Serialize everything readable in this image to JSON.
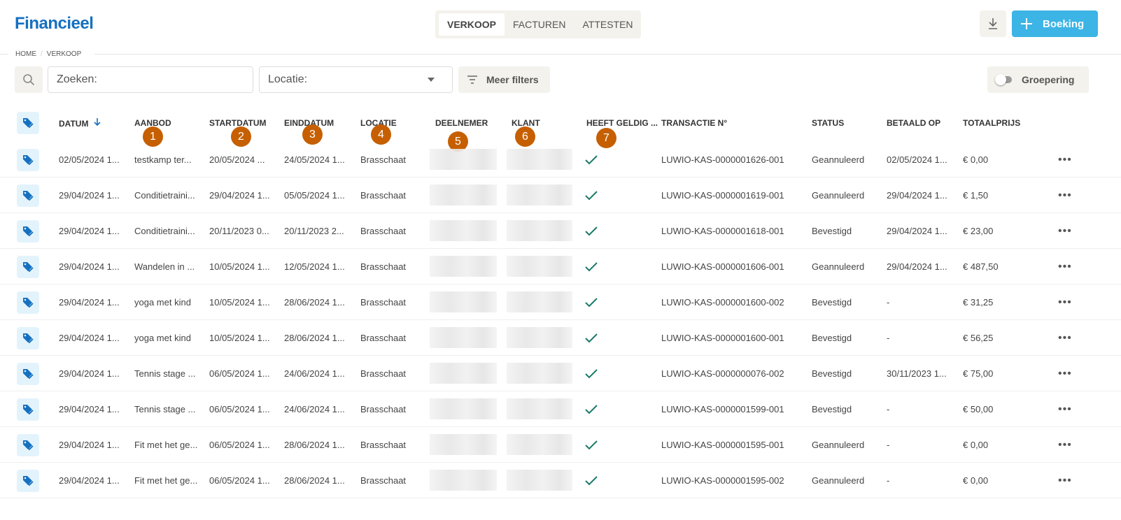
{
  "header": {
    "title": "Financieel",
    "tabs": [
      {
        "label": "VERKOOP",
        "active": true
      },
      {
        "label": "FACTUREN"
      },
      {
        "label": "ATTESTEN"
      }
    ],
    "download_icon": "download-icon",
    "booking_label": "Boeking"
  },
  "breadcrumb": [
    "HOME",
    "VERKOOP"
  ],
  "filters": {
    "search_placeholder": "Zoeken:",
    "location_placeholder": "Locatie:",
    "more_filters_label": "Meer filters",
    "grouping_label": "Groepering",
    "grouping_on": false
  },
  "table": {
    "columns": [
      "DATUM",
      "AANBOD",
      "STARTDATUM",
      "EINDDATUM",
      "LOCATIE",
      "DEELNEMER",
      "KLANT",
      "HEEFT GELDIG ...",
      "TRANSACTIE N°",
      "STATUS",
      "BETAALD OP",
      "TOTAALPRIJS"
    ],
    "sort": {
      "column": "DATUM",
      "direction": "desc"
    },
    "annotations": [
      "1",
      "2",
      "3",
      "4",
      "5",
      "6",
      "7"
    ],
    "rows": [
      {
        "datum": "02/05/2024 1...",
        "aanbod": "testkamp ter...",
        "start": "20/05/2024 ...",
        "eind": "24/05/2024 1...",
        "locatie": "Brasschaat",
        "geldig": true,
        "transactie": "LUWIO-KAS-0000001626-001",
        "status": "Geannuleerd",
        "betaald": "02/05/2024 1...",
        "totaal": "€ 0,00"
      },
      {
        "datum": "29/04/2024 1...",
        "aanbod": "Conditietraini...",
        "start": "29/04/2024 1...",
        "eind": "05/05/2024 1...",
        "locatie": "Brasschaat",
        "geldig": true,
        "transactie": "LUWIO-KAS-0000001619-001",
        "status": "Geannuleerd",
        "betaald": "29/04/2024 1...",
        "totaal": "€ 1,50"
      },
      {
        "datum": "29/04/2024 1...",
        "aanbod": "Conditietraini...",
        "start": "20/11/2023 0...",
        "eind": "20/11/2023 2...",
        "locatie": "Brasschaat",
        "geldig": true,
        "transactie": "LUWIO-KAS-0000001618-001",
        "status": "Bevestigd",
        "betaald": "29/04/2024 1...",
        "totaal": "€ 23,00"
      },
      {
        "datum": "29/04/2024 1...",
        "aanbod": "Wandelen in ...",
        "start": "10/05/2024 1...",
        "eind": "12/05/2024 1...",
        "locatie": "Brasschaat",
        "geldig": true,
        "transactie": "LUWIO-KAS-0000001606-001",
        "status": "Geannuleerd",
        "betaald": "29/04/2024 1...",
        "totaal": "€ 487,50"
      },
      {
        "datum": "29/04/2024 1...",
        "aanbod": "yoga met kind",
        "start": "10/05/2024 1...",
        "eind": "28/06/2024 1...",
        "locatie": "Brasschaat",
        "geldig": true,
        "transactie": "LUWIO-KAS-0000001600-002",
        "status": "Bevestigd",
        "betaald": "-",
        "totaal": "€ 31,25"
      },
      {
        "datum": "29/04/2024 1...",
        "aanbod": "yoga met kind",
        "start": "10/05/2024 1...",
        "eind": "28/06/2024 1...",
        "locatie": "Brasschaat",
        "geldig": true,
        "transactie": "LUWIO-KAS-0000001600-001",
        "status": "Bevestigd",
        "betaald": "-",
        "totaal": "€ 56,25"
      },
      {
        "datum": "29/04/2024 1...",
        "aanbod": "Tennis stage ...",
        "start": "06/05/2024 1...",
        "eind": "24/06/2024 1...",
        "locatie": "Brasschaat",
        "geldig": true,
        "transactie": "LUWIO-KAS-0000000076-002",
        "status": "Bevestigd",
        "betaald": "30/11/2023 1...",
        "totaal": "€ 75,00"
      },
      {
        "datum": "29/04/2024 1...",
        "aanbod": "Tennis stage ...",
        "start": "06/05/2024 1...",
        "eind": "24/06/2024 1...",
        "locatie": "Brasschaat",
        "geldig": true,
        "transactie": "LUWIO-KAS-0000001599-001",
        "status": "Bevestigd",
        "betaald": "-",
        "totaal": "€ 50,00"
      },
      {
        "datum": "29/04/2024 1...",
        "aanbod": "Fit met het ge...",
        "start": "06/05/2024 1...",
        "eind": "28/06/2024 1...",
        "locatie": "Brasschaat",
        "geldig": true,
        "transactie": "LUWIO-KAS-0000001595-001",
        "status": "Geannuleerd",
        "betaald": "-",
        "totaal": "€ 0,00"
      },
      {
        "datum": "29/04/2024 1...",
        "aanbod": "Fit met het ge...",
        "start": "06/05/2024 1...",
        "eind": "28/06/2024 1...",
        "locatie": "Brasschaat",
        "geldig": true,
        "transactie": "LUWIO-KAS-0000001595-002",
        "status": "Geannuleerd",
        "betaald": "-",
        "totaal": "€ 0,00"
      }
    ]
  },
  "colors": {
    "title": "#1570c0",
    "accent": "#3cb4e6",
    "badge": "#c65f00",
    "check": "#1a7a6a"
  }
}
